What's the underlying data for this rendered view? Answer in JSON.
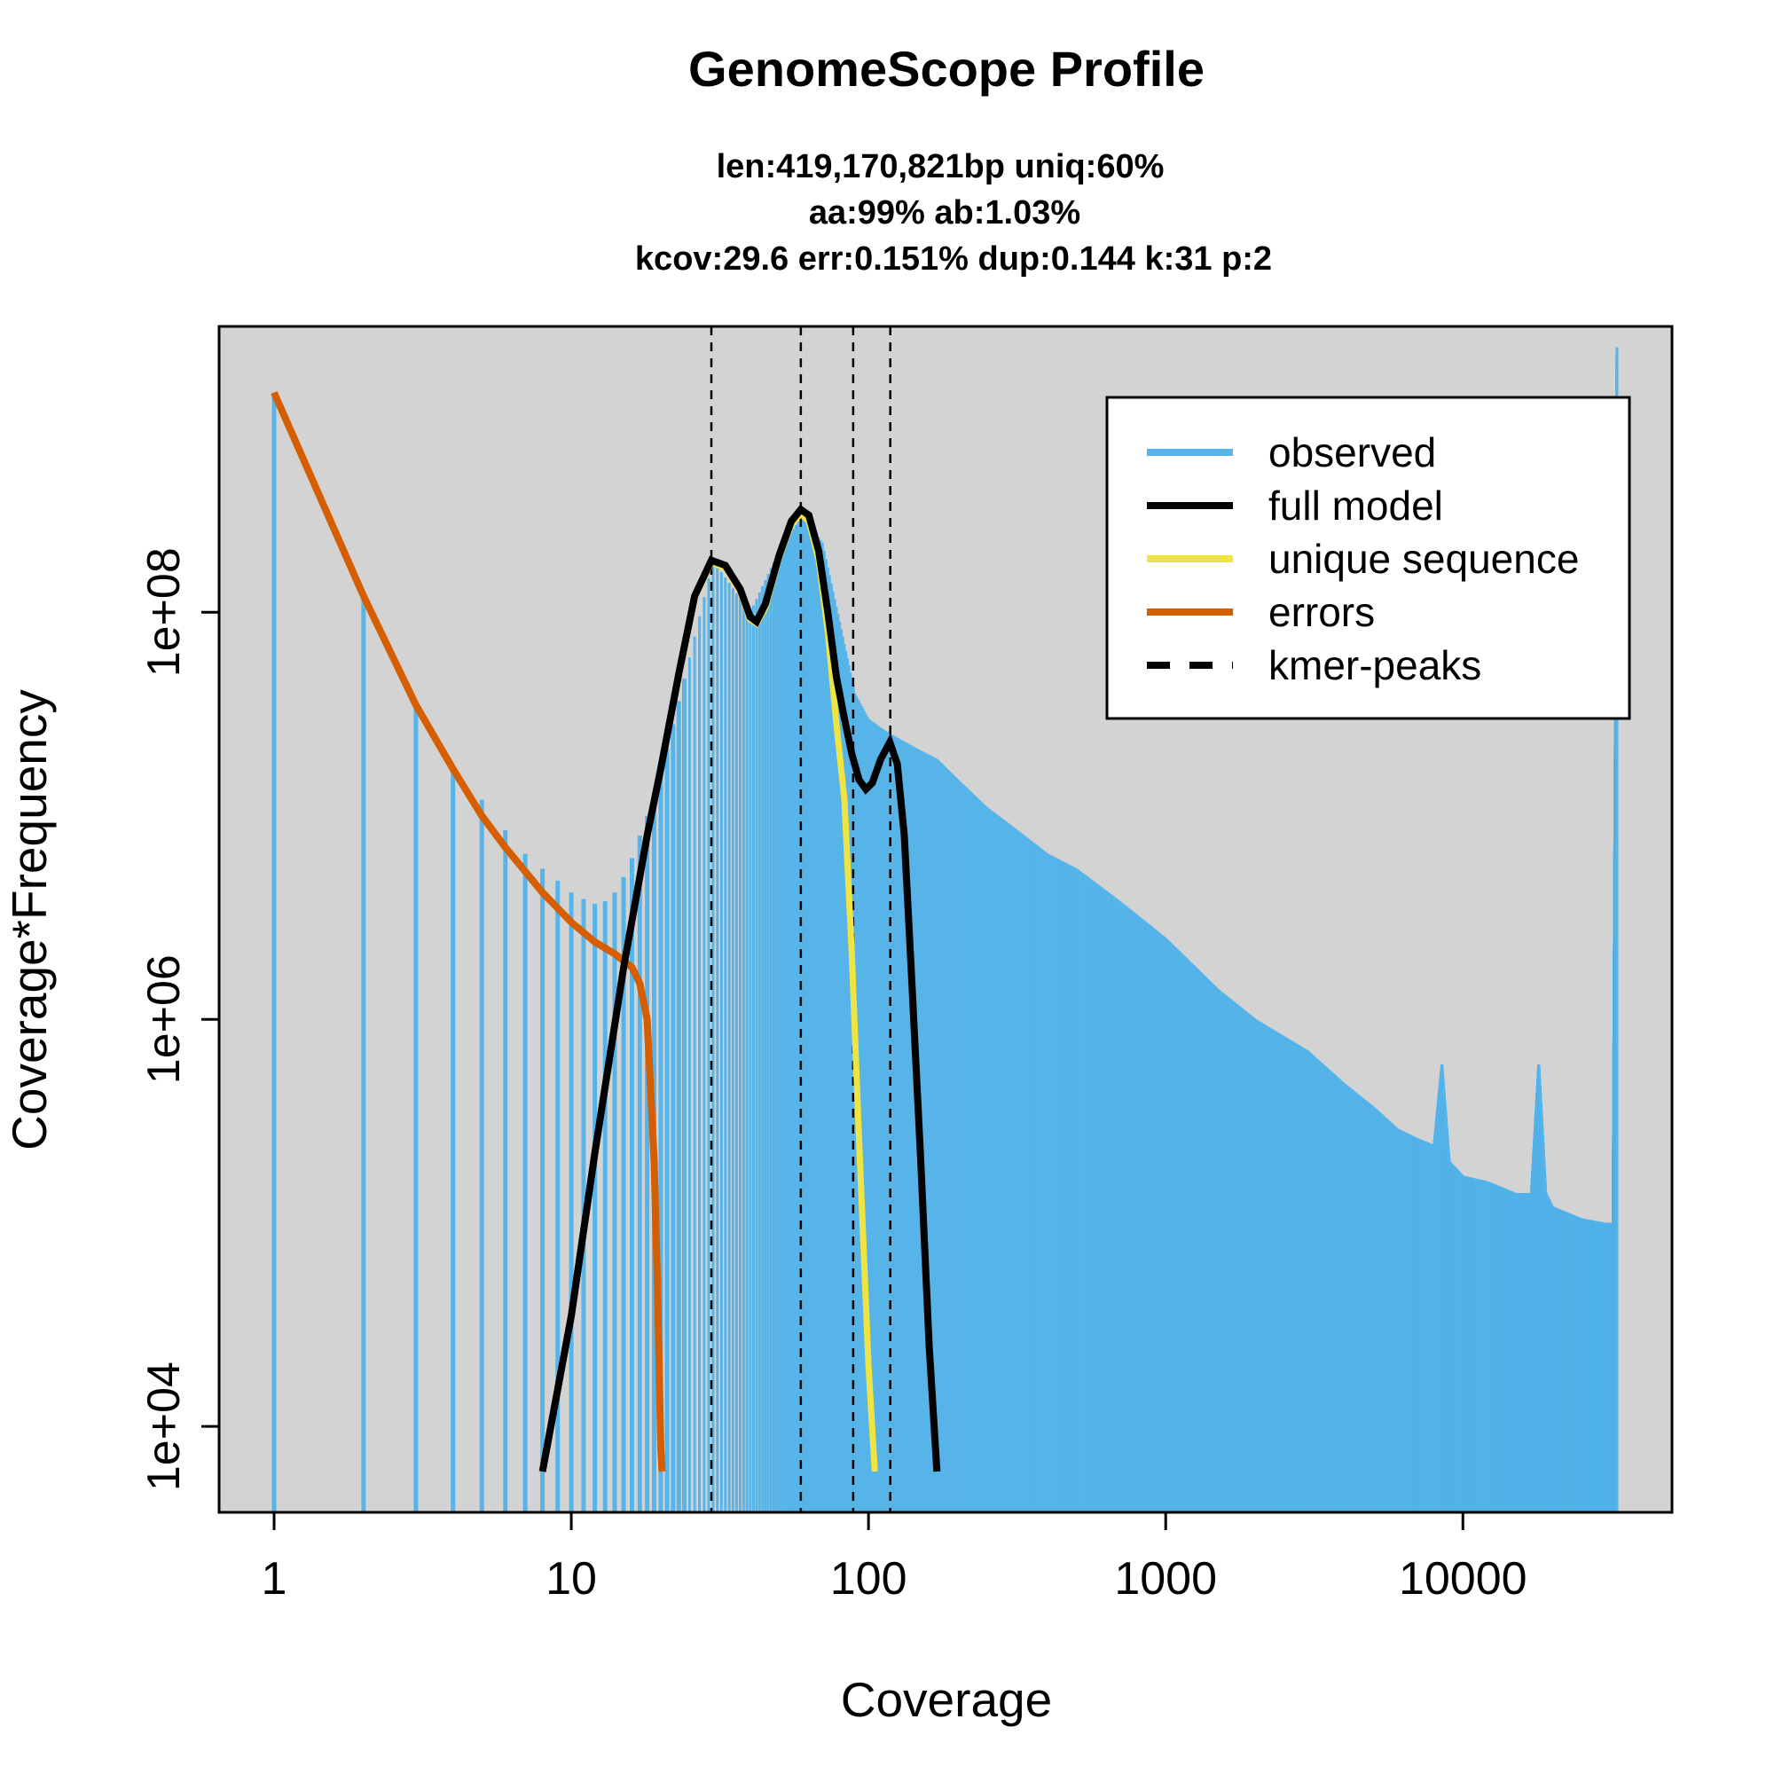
{
  "chart_data": {
    "type": "line",
    "title": "GenomeScope Profile",
    "subtitle_lines": [
      "len:419,170,821bp uniq:60%",
      "aa:99% ab:1.03%",
      "kcov:29.6 err:0.151%  dup:0.144  k:31 p:2"
    ],
    "xlabel": "Coverage",
    "ylabel": "Coverage*Frequency",
    "x_scale": "log",
    "y_scale": "log",
    "xlim": [
      1,
      33000
    ],
    "ylim": [
      6000,
      1600000000
    ],
    "x_ticks": [
      1,
      10,
      100,
      1000,
      10000
    ],
    "x_tick_labels": [
      "1",
      "10",
      "100",
      "1000",
      "10000"
    ],
    "y_ticks": [
      10000,
      1000000,
      100000000
    ],
    "y_tick_labels": [
      "1e+04",
      "1e+06",
      "1e+08"
    ],
    "grid": false,
    "legend_position": "top-right",
    "legend": [
      {
        "label": "observed",
        "color": "#56B4E9",
        "style": "solid"
      },
      {
        "label": "full model",
        "color": "#000000",
        "style": "solid"
      },
      {
        "label": "unique sequence",
        "color": "#F0E442",
        "style": "solid"
      },
      {
        "label": "errors",
        "color": "#D55E00",
        "style": "solid"
      },
      {
        "label": "kmer-peaks",
        "color": "#000000",
        "style": "dashed"
      }
    ],
    "colors": {
      "observed": "#56B4E9",
      "full_model": "#000000",
      "unique_sequence": "#F0E442",
      "errors": "#D55E00",
      "plot_background": "#D3D3D3"
    },
    "kmer_peaks": [
      29.6,
      59.2,
      88.8,
      118.4
    ],
    "observed": {
      "x": [
        1,
        2,
        3,
        4,
        5,
        6,
        7,
        8,
        9,
        10,
        11,
        12,
        13,
        14,
        15,
        16,
        17,
        18,
        20,
        25,
        30,
        40,
        50,
        60,
        70,
        80,
        90,
        100,
        110,
        120,
        140,
        170,
        200,
        250,
        300,
        400,
        500,
        700,
        1000,
        1500,
        2000,
        3000,
        4000,
        5000,
        6000,
        7000,
        8000,
        8500,
        9000,
        10000,
        12000,
        15000,
        17000,
        18000,
        19000,
        20000,
        25000,
        30000,
        32000,
        33000
      ],
      "y": [
        1200000000,
        120000000,
        35000000,
        17000000,
        12000000,
        8500000,
        6500000,
        5500000,
        4800000,
        4200000,
        3900000,
        3700000,
        3800000,
        4200000,
        5000000,
        6200000,
        8000000,
        10000000,
        16000000,
        60000000,
        180000000,
        100000000,
        200000000,
        300000000,
        220000000,
        90000000,
        40000000,
        30000000,
        27000000,
        25000000,
        22000000,
        19000000,
        15000000,
        11000000,
        9000000,
        6500000,
        5500000,
        3800000,
        2500000,
        1400000,
        1000000,
        700000,
        480000,
        370000,
        290000,
        260000,
        240000,
        600000,
        200000,
        170000,
        160000,
        140000,
        140000,
        600000,
        140000,
        120000,
        105000,
        100000,
        100000,
        2000000000
      ]
    },
    "full_model": {
      "x": [
        8,
        10,
        12,
        15,
        18,
        20,
        23,
        26,
        29.6,
        33,
        37,
        40,
        42,
        45,
        50,
        55,
        59.2,
        63,
        68,
        73,
        78,
        83,
        88,
        93,
        98,
        103,
        110,
        118,
        125,
        132,
        140,
        150,
        160,
        170
      ],
      "y": [
        6000,
        35000,
        220000,
        1800000,
        8000000,
        17000000,
        50000000,
        120000000,
        180000000,
        170000000,
        130000000,
        95000000,
        90000000,
        110000000,
        190000000,
        280000000,
        320000000,
        300000000,
        200000000,
        100000000,
        48000000,
        30000000,
        20000000,
        15000000,
        13500000,
        14500000,
        19000000,
        23000000,
        18000000,
        8000000,
        1500000,
        200000,
        25000,
        6000
      ]
    },
    "unique_sequence": {
      "x": [
        8,
        10,
        12,
        15,
        18,
        20,
        23,
        26,
        29.6,
        33,
        37,
        40,
        42,
        45,
        50,
        55,
        59.2,
        63,
        68,
        73,
        78,
        83,
        88,
        93,
        100,
        105
      ],
      "y": [
        6000,
        35000,
        220000,
        1800000,
        8000000,
        17000000,
        50000000,
        118000000,
        176000000,
        165000000,
        126000000,
        92000000,
        88000000,
        105000000,
        185000000,
        270000000,
        305000000,
        280000000,
        180000000,
        80000000,
        28000000,
        12000000,
        2000000,
        250000,
        20000,
        6000
      ]
    },
    "errors": {
      "x": [
        1,
        2,
        3,
        4,
        5,
        6,
        8,
        10,
        12,
        14,
        16,
        17,
        18,
        19,
        19.5,
        20,
        20.2
      ],
      "y": [
        1200000000,
        120000000,
        35000000,
        17000000,
        10000000,
        7000000,
        4200000,
        3000000,
        2400000,
        2100000,
        1800000,
        1500000,
        1000000,
        200000,
        50000,
        8000,
        6000
      ]
    }
  }
}
